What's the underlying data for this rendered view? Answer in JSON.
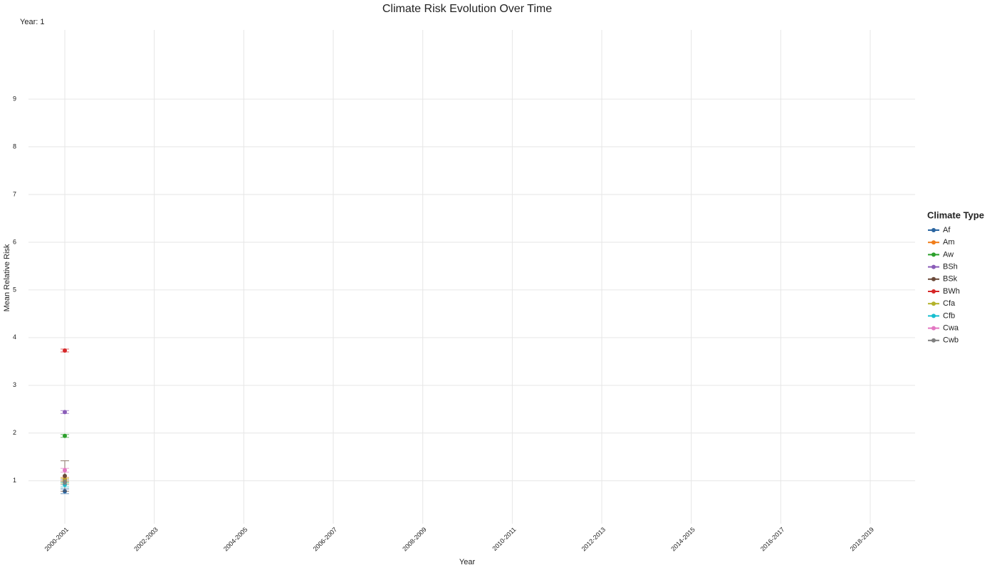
{
  "chart_data": {
    "type": "line",
    "title": "Climate Risk Evolution Over Time",
    "subtitle": "Year: 1",
    "x_label": "Year",
    "y_label": "Mean Relative Risk",
    "legend_title": "Climate Type",
    "legend_position": "right",
    "grid": true,
    "categories": [
      "2000-2001",
      "2002-2003",
      "2004-2005",
      "2006-2007",
      "2008-2009",
      "2010-2011",
      "2012-2013",
      "2014-2015",
      "2016-2017",
      "2018-2019"
    ],
    "ylim": [
      0.1,
      10.45
    ],
    "yticks": [
      1,
      2,
      3,
      4,
      5,
      6,
      7,
      8,
      9
    ],
    "series": [
      {
        "name": "Af",
        "color": "#2a65a0",
        "values": [
          0.78,
          null,
          null,
          null,
          null,
          null,
          null,
          null,
          null,
          null
        ],
        "errors": [
          0.05,
          null,
          null,
          null,
          null,
          null,
          null,
          null,
          null,
          null
        ]
      },
      {
        "name": "Am",
        "color": "#f07d1a",
        "values": [
          1.03,
          null,
          null,
          null,
          null,
          null,
          null,
          null,
          null,
          null
        ],
        "errors": [
          0.04,
          null,
          null,
          null,
          null,
          null,
          null,
          null,
          null,
          null
        ]
      },
      {
        "name": "Aw",
        "color": "#2ca02c",
        "values": [
          1.94,
          null,
          null,
          null,
          null,
          null,
          null,
          null,
          null,
          null
        ],
        "errors": [
          0.03,
          null,
          null,
          null,
          null,
          null,
          null,
          null,
          null,
          null
        ]
      },
      {
        "name": "BSh",
        "color": "#8a5cb8",
        "values": [
          2.44,
          null,
          null,
          null,
          null,
          null,
          null,
          null,
          null,
          null
        ],
        "errors": [
          0.03,
          null,
          null,
          null,
          null,
          null,
          null,
          null,
          null,
          null
        ]
      },
      {
        "name": "BSk",
        "color": "#6b4a3a",
        "values": [
          1.1,
          null,
          null,
          null,
          null,
          null,
          null,
          null,
          null,
          null
        ],
        "errors": [
          0.32,
          null,
          null,
          null,
          null,
          null,
          null,
          null,
          null,
          null
        ]
      },
      {
        "name": "BWh",
        "color": "#d62728",
        "values": [
          3.73,
          null,
          null,
          null,
          null,
          null,
          null,
          null,
          null,
          null
        ],
        "errors": [
          0.03,
          null,
          null,
          null,
          null,
          null,
          null,
          null,
          null,
          null
        ]
      },
      {
        "name": "Cfa",
        "color": "#b3b22a",
        "values": [
          1.0,
          null,
          null,
          null,
          null,
          null,
          null,
          null,
          null,
          null
        ],
        "errors": [
          0.05,
          null,
          null,
          null,
          null,
          null,
          null,
          null,
          null,
          null
        ]
      },
      {
        "name": "Cfb",
        "color": "#17becf",
        "values": [
          0.92,
          null,
          null,
          null,
          null,
          null,
          null,
          null,
          null,
          null
        ],
        "errors": [
          0.05,
          null,
          null,
          null,
          null,
          null,
          null,
          null,
          null,
          null
        ]
      },
      {
        "name": "Cwa",
        "color": "#e377c2",
        "values": [
          1.22,
          null,
          null,
          null,
          null,
          null,
          null,
          null,
          null,
          null
        ],
        "errors": [
          0.04,
          null,
          null,
          null,
          null,
          null,
          null,
          null,
          null,
          null
        ]
      },
      {
        "name": "Cwb",
        "color": "#7f7f7f",
        "values": [
          0.97,
          null,
          null,
          null,
          null,
          null,
          null,
          null,
          null,
          null
        ],
        "errors": [
          0.05,
          null,
          null,
          null,
          null,
          null,
          null,
          null,
          null,
          null
        ]
      }
    ]
  }
}
